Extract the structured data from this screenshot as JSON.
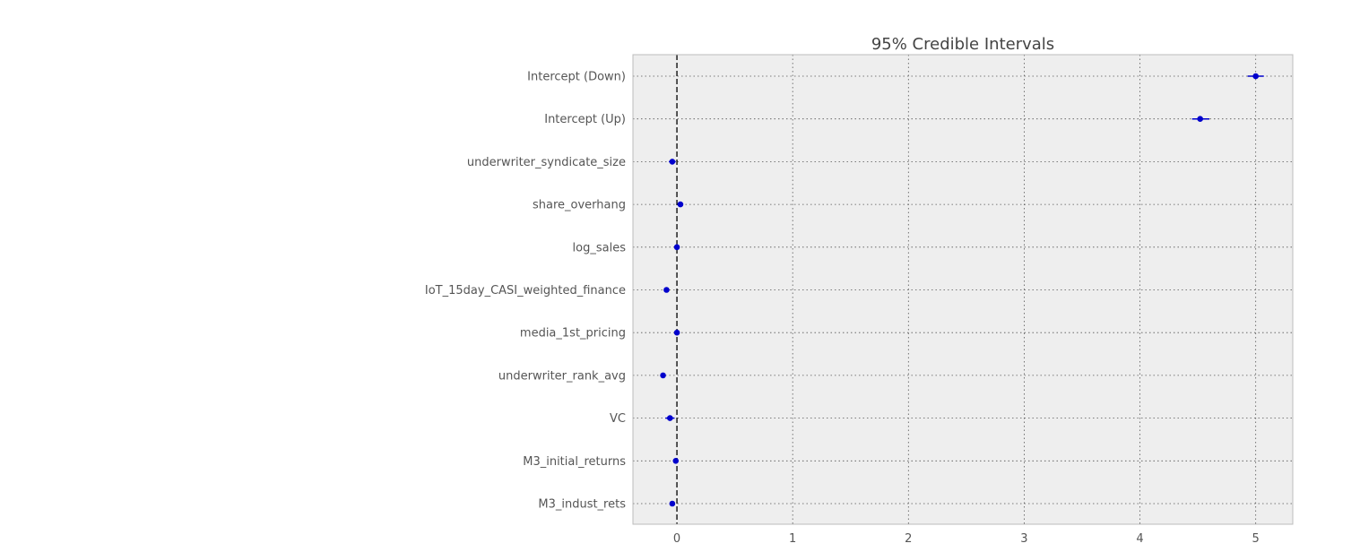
{
  "chart_data": {
    "type": "forest",
    "title": "95% Credible Intervals",
    "xlabel": "",
    "ylabel": "",
    "xlim": [
      -0.38,
      5.32
    ],
    "xticks": [
      0,
      1,
      2,
      3,
      4,
      5
    ],
    "reference_line_x": 0,
    "grid": true,
    "colors": {
      "point": "#0000cc",
      "background": "#eeeeee",
      "grid": "#555555",
      "reference": "#000000"
    },
    "items": [
      {
        "label": "Intercept (Down)",
        "estimate": 5.0,
        "lower": 4.93,
        "upper": 5.07
      },
      {
        "label": "Intercept (Up)",
        "estimate": 4.52,
        "lower": 4.45,
        "upper": 4.6
      },
      {
        "label": "underwriter_syndicate_size",
        "estimate": -0.04,
        "lower": -0.07,
        "upper": -0.01
      },
      {
        "label": "share_overhang",
        "estimate": 0.03,
        "lower": 0.01,
        "upper": 0.05
      },
      {
        "label": "log_sales",
        "estimate": 0.0,
        "lower": -0.02,
        "upper": 0.02
      },
      {
        "label": "IoT_15day_CASI_weighted_finance",
        "estimate": -0.09,
        "lower": -0.11,
        "upper": -0.07
      },
      {
        "label": "media_1st_pricing",
        "estimate": 0.0,
        "lower": -0.02,
        "upper": 0.02
      },
      {
        "label": "underwriter_rank_avg",
        "estimate": -0.12,
        "lower": -0.14,
        "upper": -0.1
      },
      {
        "label": "VC",
        "estimate": -0.06,
        "lower": -0.1,
        "upper": -0.02
      },
      {
        "label": "M3_initial_returns",
        "estimate": -0.01,
        "lower": -0.03,
        "upper": 0.01
      },
      {
        "label": "M3_indust_rets",
        "estimate": -0.04,
        "lower": -0.06,
        "upper": -0.02
      }
    ]
  }
}
